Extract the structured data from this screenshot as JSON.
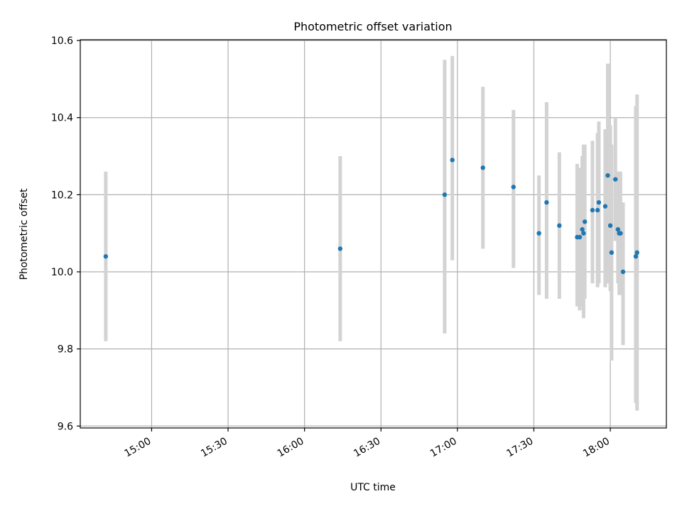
{
  "chart_data": {
    "type": "scatter",
    "title": "Photometric offset variation",
    "xlabel": "UTC time",
    "ylabel": "Photometric offset",
    "xlim": [
      "14:32",
      "18:22"
    ],
    "ylim": [
      9.595,
      10.602
    ],
    "x_ticks": [
      "15:00",
      "15:30",
      "16:00",
      "16:30",
      "17:00",
      "17:30",
      "18:00"
    ],
    "y_ticks": [
      "9.6",
      "9.8",
      "10.0",
      "10.2",
      "10.4",
      "10.6"
    ],
    "grid": true,
    "colors": {
      "points": "#1f77b4",
      "errorbars": "#d3d3d3",
      "grid": "#b0b0b0",
      "axes": "#000000"
    },
    "points": [
      {
        "t": "14:42",
        "y": 10.04,
        "lo": 9.82,
        "hi": 10.26
      },
      {
        "t": "16:14",
        "y": 10.06,
        "lo": 9.82,
        "hi": 10.3
      },
      {
        "t": "16:55",
        "y": 10.2,
        "lo": 9.84,
        "hi": 10.55
      },
      {
        "t": "16:58",
        "y": 10.29,
        "lo": 10.03,
        "hi": 10.56
      },
      {
        "t": "17:10",
        "y": 10.27,
        "lo": 10.06,
        "hi": 10.48
      },
      {
        "t": "17:22",
        "y": 10.22,
        "lo": 10.01,
        "hi": 10.42
      },
      {
        "t": "17:32",
        "y": 10.1,
        "lo": 9.94,
        "hi": 10.25
      },
      {
        "t": "17:35",
        "y": 10.18,
        "lo": 9.93,
        "hi": 10.44
      },
      {
        "t": "17:40",
        "y": 10.12,
        "lo": 9.93,
        "hi": 10.31
      },
      {
        "t": "17:47",
        "y": 10.09,
        "lo": 9.91,
        "hi": 10.28
      },
      {
        "t": "17:48",
        "y": 10.09,
        "lo": 9.9,
        "hi": 10.27
      },
      {
        "t": "17:49",
        "y": 10.11,
        "lo": 9.91,
        "hi": 10.3
      },
      {
        "t": "17:49.5",
        "y": 10.1,
        "lo": 9.88,
        "hi": 10.33
      },
      {
        "t": "17:50",
        "y": 10.13,
        "lo": 9.93,
        "hi": 10.33
      },
      {
        "t": "17:53",
        "y": 10.16,
        "lo": 9.97,
        "hi": 10.34
      },
      {
        "t": "17:55",
        "y": 10.16,
        "lo": 9.96,
        "hi": 10.36
      },
      {
        "t": "17:55.5",
        "y": 10.18,
        "lo": 9.97,
        "hi": 10.39
      },
      {
        "t": "17:58",
        "y": 10.17,
        "lo": 9.96,
        "hi": 10.37
      },
      {
        "t": "17:59",
        "y": 10.25,
        "lo": 9.97,
        "hi": 10.54
      },
      {
        "t": "18:00",
        "y": 10.12,
        "lo": 9.95,
        "hi": 10.38
      },
      {
        "t": "18:00.5",
        "y": 10.05,
        "lo": 9.77,
        "hi": 10.33
      },
      {
        "t": "18:02",
        "y": 10.24,
        "lo": 10.08,
        "hi": 10.4
      },
      {
        "t": "18:03",
        "y": 10.11,
        "lo": 9.97,
        "hi": 10.26
      },
      {
        "t": "18:03.5",
        "y": 10.1,
        "lo": 9.94,
        "hi": 10.26
      },
      {
        "t": "18:04",
        "y": 10.1,
        "lo": 9.94,
        "hi": 10.26
      },
      {
        "t": "18:05",
        "y": 10.0,
        "lo": 9.81,
        "hi": 10.18
      },
      {
        "t": "18:10",
        "y": 10.04,
        "lo": 9.66,
        "hi": 10.43
      },
      {
        "t": "18:10.5",
        "y": 10.05,
        "lo": 9.64,
        "hi": 10.46
      }
    ]
  }
}
